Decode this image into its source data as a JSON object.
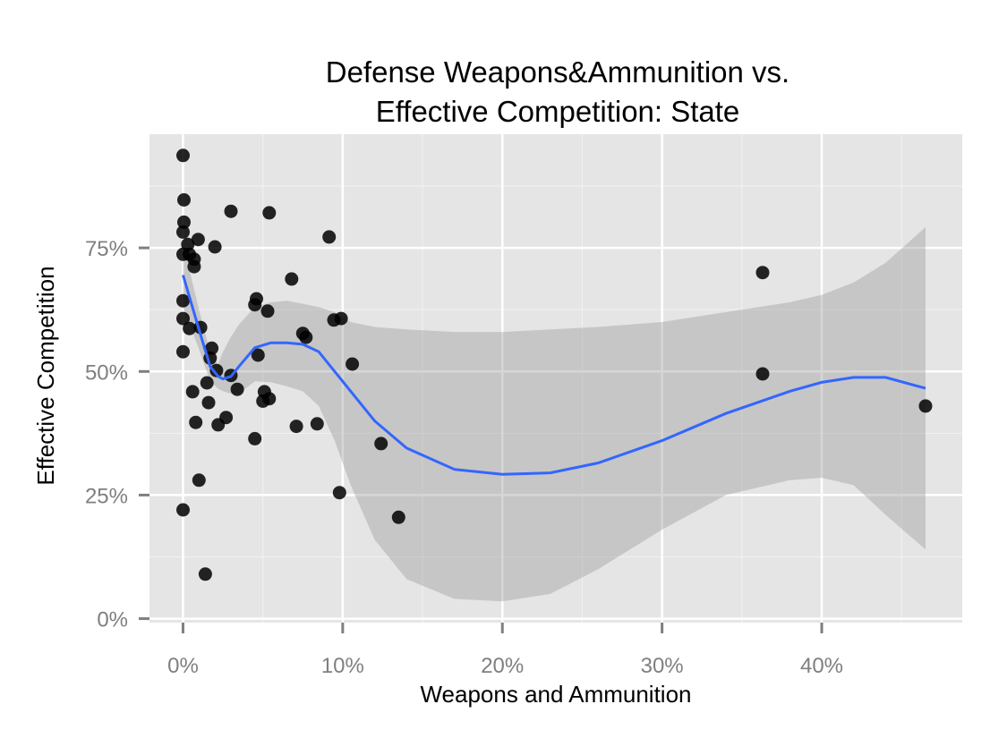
{
  "chart_data": {
    "type": "scatter",
    "title": [
      "Defense Weapons&Ammunition vs.",
      "Effective Competition: State"
    ],
    "xlabel": "Weapons and Ammunition",
    "ylabel": "Effective Competition",
    "xlim": [
      -0.021,
      0.488
    ],
    "ylim": [
      -0.008,
      0.98
    ],
    "x_ticks": [
      {
        "value": 0.0,
        "label": "0%"
      },
      {
        "value": 0.1,
        "label": "10%"
      },
      {
        "value": 0.2,
        "label": "20%"
      },
      {
        "value": 0.3,
        "label": "30%"
      },
      {
        "value": 0.4,
        "label": "40%"
      }
    ],
    "y_ticks": [
      {
        "value": 0.0,
        "label": "0%"
      },
      {
        "value": 0.25,
        "label": "25%"
      },
      {
        "value": 0.5,
        "label": "50%"
      },
      {
        "value": 0.75,
        "label": "75%"
      }
    ],
    "grid": true,
    "colors": {
      "panel": "#e5e5e5",
      "grid_major": "#ffffff",
      "grid_minor": "#f2f2f2",
      "points": "#000000",
      "smooth_line": "#3366ff",
      "ribbon": "#999999"
    },
    "points": [
      {
        "x": 0.0,
        "y": 0.937
      },
      {
        "x": 0.0006,
        "y": 0.847
      },
      {
        "x": 0.0006,
        "y": 0.802
      },
      {
        "x": 0.0,
        "y": 0.782
      },
      {
        "x": 0.003,
        "y": 0.757
      },
      {
        "x": 0.004,
        "y": 0.737
      },
      {
        "x": 0.0,
        "y": 0.737
      },
      {
        "x": 0.007,
        "y": 0.727
      },
      {
        "x": 0.007,
        "y": 0.712
      },
      {
        "x": 0.0095,
        "y": 0.767
      },
      {
        "x": 0.02,
        "y": 0.752
      },
      {
        "x": 0.03,
        "y": 0.824
      },
      {
        "x": 0.054,
        "y": 0.821
      },
      {
        "x": 0.0915,
        "y": 0.772
      },
      {
        "x": 0.0,
        "y": 0.643
      },
      {
        "x": 0.0,
        "y": 0.607
      },
      {
        "x": 0.004,
        "y": 0.587
      },
      {
        "x": 0.011,
        "y": 0.589
      },
      {
        "x": 0.0,
        "y": 0.54
      },
      {
        "x": 0.018,
        "y": 0.547
      },
      {
        "x": 0.017,
        "y": 0.527
      },
      {
        "x": 0.021,
        "y": 0.502
      },
      {
        "x": 0.015,
        "y": 0.477
      },
      {
        "x": 0.03,
        "y": 0.492
      },
      {
        "x": 0.006,
        "y": 0.459
      },
      {
        "x": 0.016,
        "y": 0.437
      },
      {
        "x": 0.034,
        "y": 0.464
      },
      {
        "x": 0.008,
        "y": 0.397
      },
      {
        "x": 0.022,
        "y": 0.392
      },
      {
        "x": 0.027,
        "y": 0.407
      },
      {
        "x": 0.0,
        "y": 0.22
      },
      {
        "x": 0.01,
        "y": 0.28
      },
      {
        "x": 0.014,
        "y": 0.09
      },
      {
        "x": 0.046,
        "y": 0.647
      },
      {
        "x": 0.045,
        "y": 0.635
      },
      {
        "x": 0.053,
        "y": 0.622
      },
      {
        "x": 0.047,
        "y": 0.533
      },
      {
        "x": 0.068,
        "y": 0.687
      },
      {
        "x": 0.075,
        "y": 0.577
      },
      {
        "x": 0.077,
        "y": 0.569
      },
      {
        "x": 0.0945,
        "y": 0.604
      },
      {
        "x": 0.099,
        "y": 0.607
      },
      {
        "x": 0.106,
        "y": 0.515
      },
      {
        "x": 0.051,
        "y": 0.459
      },
      {
        "x": 0.05,
        "y": 0.44
      },
      {
        "x": 0.054,
        "y": 0.445
      },
      {
        "x": 0.045,
        "y": 0.364
      },
      {
        "x": 0.071,
        "y": 0.389
      },
      {
        "x": 0.084,
        "y": 0.394
      },
      {
        "x": 0.098,
        "y": 0.255
      },
      {
        "x": 0.124,
        "y": 0.354
      },
      {
        "x": 0.135,
        "y": 0.205
      },
      {
        "x": 0.363,
        "y": 0.7
      },
      {
        "x": 0.363,
        "y": 0.495
      },
      {
        "x": 0.465,
        "y": 0.43
      }
    ],
    "smooth": {
      "x": [
        0.0,
        0.01,
        0.017,
        0.022,
        0.025,
        0.03,
        0.035,
        0.045,
        0.055,
        0.065,
        0.075,
        0.085,
        0.095,
        0.105,
        0.12,
        0.14,
        0.17,
        0.2,
        0.23,
        0.26,
        0.3,
        0.34,
        0.38,
        0.4,
        0.42,
        0.44,
        0.465
      ],
      "y": [
        0.695,
        0.585,
        0.51,
        0.49,
        0.485,
        0.49,
        0.51,
        0.548,
        0.558,
        0.558,
        0.555,
        0.54,
        0.5,
        0.46,
        0.4,
        0.345,
        0.302,
        0.292,
        0.295,
        0.315,
        0.36,
        0.415,
        0.46,
        0.478,
        0.488,
        0.488,
        0.466
      ],
      "lower": [
        0.63,
        0.545,
        0.48,
        0.465,
        0.46,
        0.455,
        0.455,
        0.48,
        0.478,
        0.47,
        0.46,
        0.43,
        0.36,
        0.27,
        0.16,
        0.08,
        0.04,
        0.035,
        0.05,
        0.1,
        0.18,
        0.25,
        0.28,
        0.285,
        0.27,
        0.21,
        0.14
      ],
      "upper": [
        0.76,
        0.625,
        0.54,
        0.515,
        0.54,
        0.57,
        0.595,
        0.63,
        0.64,
        0.643,
        0.637,
        0.63,
        0.62,
        0.6,
        0.59,
        0.585,
        0.58,
        0.58,
        0.585,
        0.59,
        0.6,
        0.62,
        0.64,
        0.655,
        0.68,
        0.72,
        0.792
      ]
    }
  }
}
